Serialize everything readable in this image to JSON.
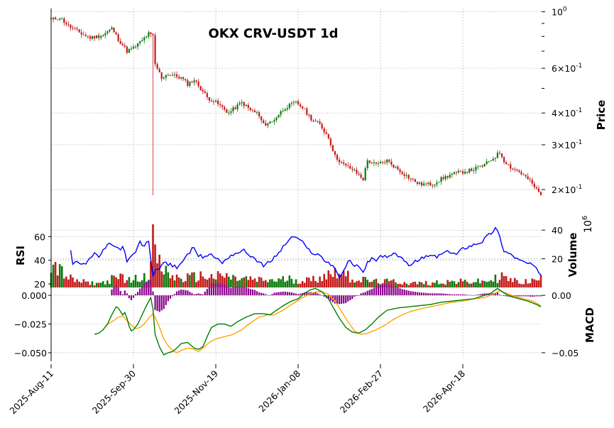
{
  "chart_data": {
    "type": "candlestick",
    "title": "OKX CRV-USDT 1d",
    "colors": {
      "up": "#0b7a0b",
      "down": "#c41a1a",
      "rsi": "#0000ff",
      "macd": "#008000",
      "signal": "#ffa500",
      "hist": "#8b008b"
    },
    "x_dates": [
      "2025-Aug-11",
      "2025-Sep-30",
      "2025-Nov-19",
      "2026-Jan-08",
      "2026-Feb-27",
      "2026-Apr-18"
    ],
    "price_panel": {
      "ylabel": "Price",
      "scale": "log",
      "ylim": [
        0.165,
        1.03
      ],
      "tick_labels": [
        "10^0",
        "6×10^-1",
        "4×10^-1",
        "3×10^-1",
        "2×10^-1"
      ],
      "anchors_day_close": [
        [
          0,
          0.93
        ],
        [
          4,
          0.95
        ],
        [
          8,
          0.88
        ],
        [
          14,
          0.82
        ],
        [
          18,
          0.79
        ],
        [
          24,
          0.81
        ],
        [
          28,
          0.86
        ],
        [
          31,
          0.78
        ],
        [
          35,
          0.7
        ],
        [
          38,
          0.72
        ],
        [
          42,
          0.77
        ],
        [
          45,
          0.82
        ],
        [
          47,
          0.8
        ],
        [
          48,
          0.62
        ],
        [
          51,
          0.55
        ],
        [
          54,
          0.57
        ],
        [
          60,
          0.55
        ],
        [
          63,
          0.52
        ],
        [
          66,
          0.54
        ],
        [
          72,
          0.46
        ],
        [
          76,
          0.44
        ],
        [
          82,
          0.4
        ],
        [
          88,
          0.44
        ],
        [
          92,
          0.41
        ],
        [
          95,
          0.4
        ],
        [
          98,
          0.36
        ],
        [
          102,
          0.37
        ],
        [
          108,
          0.42
        ],
        [
          113,
          0.44
        ],
        [
          116,
          0.42
        ],
        [
          120,
          0.38
        ],
        [
          124,
          0.36
        ],
        [
          128,
          0.32
        ],
        [
          131,
          0.27
        ],
        [
          135,
          0.25
        ],
        [
          139,
          0.24
        ],
        [
          144,
          0.22
        ],
        [
          146,
          0.26
        ],
        [
          150,
          0.25
        ],
        [
          155,
          0.26
        ],
        [
          160,
          0.24
        ],
        [
          166,
          0.22
        ],
        [
          170,
          0.21
        ],
        [
          176,
          0.21
        ],
        [
          180,
          0.22
        ],
        [
          185,
          0.23
        ],
        [
          190,
          0.235
        ],
        [
          195,
          0.24
        ],
        [
          200,
          0.25
        ],
        [
          205,
          0.27
        ],
        [
          207,
          0.28
        ],
        [
          209,
          0.26
        ],
        [
          212,
          0.245
        ],
        [
          216,
          0.235
        ],
        [
          220,
          0.22
        ],
        [
          224,
          0.2
        ],
        [
          226,
          0.19
        ]
      ],
      "spike_day": 47,
      "spike_low": 0.19
    },
    "rsi_panel": {
      "ylabel": "RSI",
      "ylim": [
        17,
        74
      ],
      "yticks": [
        20,
        40,
        60
      ],
      "start_day": 9,
      "anchors_day_value": [
        [
          9,
          49
        ],
        [
          10,
          38
        ],
        [
          12,
          40
        ],
        [
          14,
          37
        ],
        [
          16,
          38
        ],
        [
          18,
          42
        ],
        [
          20,
          45
        ],
        [
          22,
          43
        ],
        [
          24,
          48
        ],
        [
          26,
          52
        ],
        [
          28,
          54
        ],
        [
          30,
          51
        ],
        [
          32,
          48
        ],
        [
          33,
          53
        ],
        [
          34,
          46
        ],
        [
          35,
          38
        ],
        [
          37,
          43
        ],
        [
          39,
          47
        ],
        [
          41,
          55
        ],
        [
          43,
          52
        ],
        [
          45,
          56
        ],
        [
          47,
          27
        ],
        [
          48,
          31
        ],
        [
          50,
          34
        ],
        [
          52,
          38
        ],
        [
          55,
          36
        ],
        [
          58,
          34
        ],
        [
          60,
          38
        ],
        [
          63,
          44
        ],
        [
          66,
          52
        ],
        [
          68,
          44
        ],
        [
          71,
          42
        ],
        [
          73,
          46
        ],
        [
          76,
          42
        ],
        [
          79,
          38
        ],
        [
          82,
          43
        ],
        [
          85,
          46
        ],
        [
          89,
          48
        ],
        [
          92,
          44
        ],
        [
          95,
          40
        ],
        [
          98,
          35
        ],
        [
          101,
          39
        ],
        [
          104,
          44
        ],
        [
          107,
          51
        ],
        [
          110,
          58
        ],
        [
          113,
          60
        ],
        [
          116,
          55
        ],
        [
          118,
          50
        ],
        [
          121,
          46
        ],
        [
          124,
          44
        ],
        [
          126,
          40
        ],
        [
          129,
          37
        ],
        [
          131,
          33
        ],
        [
          133,
          26
        ],
        [
          135,
          30
        ],
        [
          137,
          40
        ],
        [
          139,
          37
        ],
        [
          141,
          35
        ],
        [
          144,
          31
        ],
        [
          146,
          38
        ],
        [
          148,
          42
        ],
        [
          150,
          40
        ],
        [
          153,
          44
        ],
        [
          155,
          42
        ],
        [
          158,
          45
        ],
        [
          161,
          44
        ],
        [
          163,
          38
        ],
        [
          166,
          36
        ],
        [
          169,
          40
        ],
        [
          172,
          42
        ],
        [
          175,
          44
        ],
        [
          178,
          43
        ],
        [
          181,
          46
        ],
        [
          184,
          47
        ],
        [
          187,
          45
        ],
        [
          190,
          50
        ],
        [
          193,
          52
        ],
        [
          196,
          54
        ],
        [
          199,
          56
        ],
        [
          201,
          60
        ],
        [
          203,
          63
        ],
        [
          205,
          67
        ],
        [
          206,
          64
        ],
        [
          207,
          60
        ],
        [
          209,
          48
        ],
        [
          211,
          46
        ],
        [
          213,
          44
        ],
        [
          216,
          40
        ],
        [
          219,
          38
        ],
        [
          222,
          36
        ],
        [
          224,
          32
        ],
        [
          226,
          28
        ]
      ]
    },
    "volume_panel": {
      "ylabel": "Volume",
      "unit_label": "10^6",
      "ylim": [
        0,
        47
      ],
      "yticks": [
        20,
        40
      ],
      "anchors_day_value": [
        [
          0,
          14
        ],
        [
          2,
          16
        ],
        [
          4,
          12
        ],
        [
          6,
          9
        ],
        [
          8,
          7
        ],
        [
          10,
          5
        ],
        [
          14,
          4
        ],
        [
          18,
          3
        ],
        [
          22,
          3
        ],
        [
          26,
          4
        ],
        [
          28,
          6
        ],
        [
          30,
          5
        ],
        [
          32,
          8
        ],
        [
          34,
          7
        ],
        [
          36,
          5
        ],
        [
          38,
          6
        ],
        [
          40,
          6
        ],
        [
          42,
          8
        ],
        [
          44,
          9
        ],
        [
          46,
          13
        ],
        [
          47,
          44
        ],
        [
          48,
          30
        ],
        [
          50,
          15
        ],
        [
          52,
          12
        ],
        [
          55,
          8
        ],
        [
          60,
          6
        ],
        [
          65,
          7
        ],
        [
          70,
          8
        ],
        [
          75,
          7
        ],
        [
          80,
          8
        ],
        [
          85,
          6
        ],
        [
          90,
          6
        ],
        [
          95,
          5
        ],
        [
          100,
          5
        ],
        [
          105,
          5
        ],
        [
          110,
          6
        ],
        [
          115,
          5
        ],
        [
          120,
          5
        ],
        [
          125,
          8
        ],
        [
          130,
          10
        ],
        [
          133,
          14
        ],
        [
          135,
          9
        ],
        [
          140,
          6
        ],
        [
          145,
          5
        ],
        [
          150,
          4
        ],
        [
          155,
          4
        ],
        [
          160,
          4
        ],
        [
          165,
          3
        ],
        [
          170,
          3
        ],
        [
          175,
          3
        ],
        [
          180,
          4
        ],
        [
          185,
          4
        ],
        [
          190,
          4
        ],
        [
          195,
          4
        ],
        [
          200,
          4
        ],
        [
          205,
          6
        ],
        [
          208,
          8
        ],
        [
          210,
          6
        ],
        [
          215,
          4
        ],
        [
          220,
          4
        ],
        [
          224,
          5
        ],
        [
          226,
          6
        ]
      ]
    },
    "macd_panel": {
      "ylabel": "MACD",
      "ylim": [
        -0.055,
        0.005
      ],
      "yticks_left": [
        0.0,
        -0.025,
        -0.05
      ],
      "yticks_right": [
        "0.00",
        "−0.05"
      ],
      "start_day": 20,
      "macd_anchors": [
        [
          20,
          -0.034
        ],
        [
          22,
          -0.033
        ],
        [
          24,
          -0.03
        ],
        [
          26,
          -0.025
        ],
        [
          28,
          -0.017
        ],
        [
          30,
          -0.01
        ],
        [
          31,
          -0.011
        ],
        [
          33,
          -0.017
        ],
        [
          34,
          -0.015
        ],
        [
          35,
          -0.02
        ],
        [
          36,
          -0.027
        ],
        [
          37,
          -0.031
        ],
        [
          38,
          -0.03
        ],
        [
          40,
          -0.025
        ],
        [
          42,
          -0.017
        ],
        [
          44,
          -0.009
        ],
        [
          46,
          -0.002
        ],
        [
          47,
          -0.012
        ],
        [
          48,
          -0.034
        ],
        [
          50,
          -0.045
        ],
        [
          52,
          -0.052
        ],
        [
          54,
          -0.05
        ],
        [
          56,
          -0.049
        ],
        [
          58,
          -0.046
        ],
        [
          60,
          -0.042
        ],
        [
          63,
          -0.041
        ],
        [
          66,
          -0.046
        ],
        [
          68,
          -0.047
        ],
        [
          70,
          -0.045
        ],
        [
          72,
          -0.036
        ],
        [
          74,
          -0.028
        ],
        [
          77,
          -0.025
        ],
        [
          80,
          -0.025
        ],
        [
          83,
          -0.027
        ],
        [
          86,
          -0.023
        ],
        [
          90,
          -0.019
        ],
        [
          94,
          -0.016
        ],
        [
          98,
          -0.016
        ],
        [
          101,
          -0.017
        ],
        [
          104,
          -0.013
        ],
        [
          108,
          -0.008
        ],
        [
          111,
          -0.005
        ],
        [
          114,
          -0.003
        ],
        [
          117,
          0.002
        ],
        [
          120,
          0.005
        ],
        [
          122,
          0.006
        ],
        [
          125,
          0.003
        ],
        [
          128,
          -0.003
        ],
        [
          130,
          -0.01
        ],
        [
          133,
          -0.02
        ],
        [
          136,
          -0.028
        ],
        [
          139,
          -0.032
        ],
        [
          142,
          -0.033
        ],
        [
          145,
          -0.03
        ],
        [
          148,
          -0.025
        ],
        [
          151,
          -0.019
        ],
        [
          155,
          -0.013
        ],
        [
          160,
          -0.011
        ],
        [
          165,
          -0.01
        ],
        [
          170,
          -0.009
        ],
        [
          175,
          -0.008
        ],
        [
          180,
          -0.006
        ],
        [
          185,
          -0.005
        ],
        [
          190,
          -0.004
        ],
        [
          195,
          -0.003
        ],
        [
          200,
          0.0
        ],
        [
          203,
          0.002
        ],
        [
          206,
          0.006
        ],
        [
          209,
          0.002
        ],
        [
          212,
          -0.001
        ],
        [
          216,
          -0.003
        ],
        [
          220,
          -0.005
        ],
        [
          224,
          -0.008
        ],
        [
          226,
          -0.01
        ]
      ],
      "signal_anchors": [
        [
          25,
          -0.027
        ],
        [
          27,
          -0.024
        ],
        [
          29,
          -0.022
        ],
        [
          31,
          -0.019
        ],
        [
          33,
          -0.018
        ],
        [
          35,
          -0.022
        ],
        [
          37,
          -0.026
        ],
        [
          39,
          -0.029
        ],
        [
          41,
          -0.028
        ],
        [
          43,
          -0.025
        ],
        [
          45,
          -0.02
        ],
        [
          47,
          -0.016
        ],
        [
          48,
          -0.019
        ],
        [
          50,
          -0.028
        ],
        [
          52,
          -0.038
        ],
        [
          54,
          -0.044
        ],
        [
          56,
          -0.048
        ],
        [
          58,
          -0.05
        ],
        [
          60,
          -0.048
        ],
        [
          63,
          -0.046
        ],
        [
          66,
          -0.047
        ],
        [
          68,
          -0.049
        ],
        [
          70,
          -0.046
        ],
        [
          73,
          -0.041
        ],
        [
          76,
          -0.038
        ],
        [
          80,
          -0.036
        ],
        [
          84,
          -0.034
        ],
        [
          88,
          -0.03
        ],
        [
          92,
          -0.024
        ],
        [
          96,
          -0.019
        ],
        [
          100,
          -0.017
        ],
        [
          103,
          -0.017
        ],
        [
          107,
          -0.013
        ],
        [
          111,
          -0.008
        ],
        [
          115,
          -0.003
        ],
        [
          119,
          0.001
        ],
        [
          122,
          0.003
        ],
        [
          125,
          0.003
        ],
        [
          128,
          0.001
        ],
        [
          131,
          -0.005
        ],
        [
          134,
          -0.014
        ],
        [
          137,
          -0.023
        ],
        [
          140,
          -0.031
        ],
        [
          143,
          -0.034
        ],
        [
          146,
          -0.033
        ],
        [
          150,
          -0.03
        ],
        [
          154,
          -0.026
        ],
        [
          158,
          -0.021
        ],
        [
          162,
          -0.017
        ],
        [
          166,
          -0.014
        ],
        [
          170,
          -0.012
        ],
        [
          175,
          -0.01
        ],
        [
          180,
          -0.008
        ],
        [
          185,
          -0.006
        ],
        [
          190,
          -0.005
        ],
        [
          195,
          -0.003
        ],
        [
          200,
          -0.002
        ],
        [
          204,
          0.001
        ],
        [
          207,
          0.004
        ],
        [
          210,
          0.002
        ],
        [
          214,
          -0.001
        ],
        [
          218,
          -0.003
        ],
        [
          222,
          -0.005
        ],
        [
          226,
          -0.009
        ]
      ]
    }
  }
}
